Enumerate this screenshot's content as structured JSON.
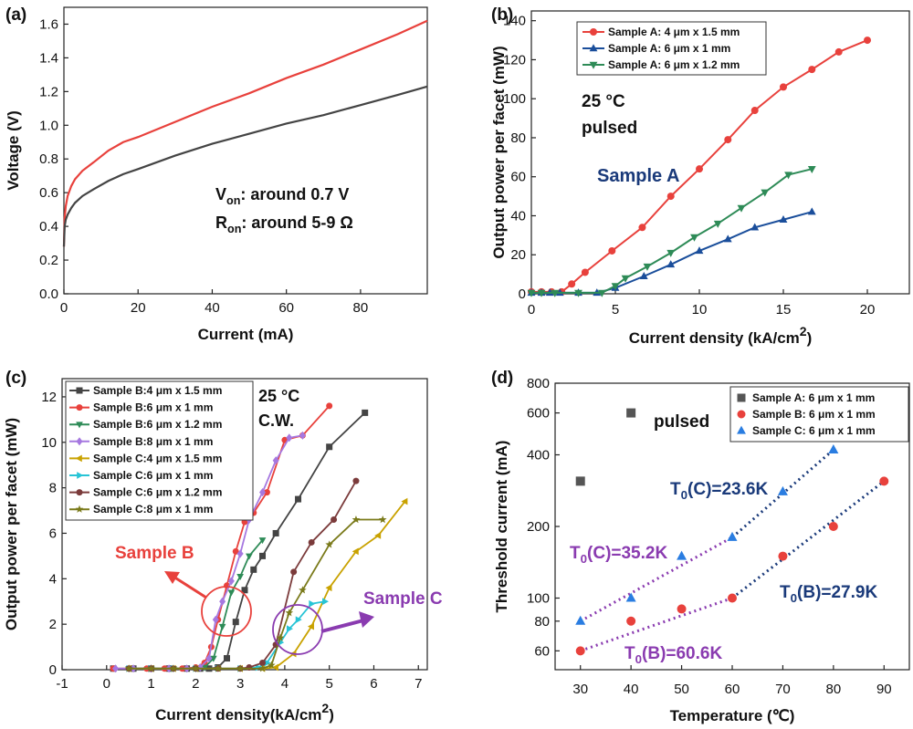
{
  "chart_data": [
    {
      "panel": "(a)",
      "type": "line",
      "xlabel": "Current (mA)",
      "ylabel": "Voltage (V)",
      "xlim": [
        0,
        98
      ],
      "ylim": [
        0,
        1.7
      ],
      "xticks": [
        0,
        20,
        40,
        60,
        80
      ],
      "yticks": [
        0.0,
        0.2,
        0.4,
        0.6,
        0.8,
        1.0,
        1.2,
        1.4,
        1.6
      ],
      "series": [
        {
          "color": "#e8413c",
          "x": [
            0,
            0.2,
            0.5,
            1,
            2,
            3,
            5,
            8,
            12,
            16,
            20,
            30,
            40,
            50,
            60,
            70,
            80,
            90,
            98
          ],
          "y": [
            0.28,
            0.45,
            0.52,
            0.58,
            0.64,
            0.68,
            0.73,
            0.78,
            0.85,
            0.9,
            0.93,
            1.02,
            1.11,
            1.19,
            1.28,
            1.36,
            1.45,
            1.54,
            1.62
          ]
        },
        {
          "color": "#444444",
          "x": [
            0,
            0.2,
            0.5,
            1,
            2,
            3,
            5,
            8,
            12,
            16,
            20,
            30,
            40,
            50,
            60,
            70,
            80,
            90,
            98
          ],
          "y": [
            0.28,
            0.4,
            0.44,
            0.47,
            0.51,
            0.54,
            0.58,
            0.62,
            0.67,
            0.71,
            0.74,
            0.82,
            0.89,
            0.95,
            1.01,
            1.06,
            1.12,
            1.18,
            1.23
          ]
        }
      ],
      "annotations": [
        {
          "text": "V",
          "sub": "on",
          "rest": ": around 0.7 V"
        },
        {
          "text": "R",
          "sub": "on",
          "rest": ": around 5-9 Ω"
        }
      ]
    },
    {
      "panel": "(b)",
      "type": "line",
      "xlabel": "Current density (kA/cm",
      "xlabel_sup": "2",
      "xlabel_end": ")",
      "ylabel": "Output power per facet (mW)",
      "xlim": [
        0,
        22.5
      ],
      "ylim": [
        0,
        145
      ],
      "xticks": [
        0,
        5,
        10,
        15,
        20
      ],
      "yticks": [
        0,
        20,
        40,
        60,
        80,
        100,
        120,
        140
      ],
      "legend_position": "top-left",
      "series": [
        {
          "name": "Sample A: 4 μm x 1.5 mm",
          "color": "#e8413c",
          "marker": "circle",
          "x": [
            0,
            0.6,
            1.2,
            1.8,
            2.4,
            3.2,
            4.8,
            6.6,
            8.3,
            10,
            11.7,
            13.3,
            15,
            16.7,
            18.3,
            20
          ],
          "y": [
            1,
            1,
            1,
            1,
            5,
            11,
            22,
            34,
            50,
            64,
            79,
            94,
            106,
            115,
            124,
            130
          ]
        },
        {
          "name": "Sample A: 6 μm x 1 mm",
          "color": "#1a4e9b",
          "marker": "triangle",
          "x": [
            0,
            0.6,
            1.1,
            1.7,
            2.8,
            3.9,
            5,
            6.7,
            8.3,
            10,
            11.7,
            13.3,
            15,
            16.7
          ],
          "y": [
            0.5,
            0.5,
            0.5,
            0.5,
            0.5,
            0.5,
            3,
            9,
            15,
            22,
            28,
            34,
            38,
            42
          ]
        },
        {
          "name": "Sample A: 6 μm x 1.2 mm",
          "color": "#2e8b57",
          "marker": "triangle-down",
          "x": [
            0,
            0.6,
            1.4,
            2.8,
            4.2,
            5,
            5.6,
            6.9,
            8.3,
            9.7,
            11.1,
            12.5,
            13.9,
            15.3,
            16.7
          ],
          "y": [
            0.5,
            0.5,
            0.5,
            0.5,
            0.5,
            4,
            8,
            14,
            21,
            29,
            36,
            44,
            52,
            61,
            64
          ]
        }
      ],
      "annotations": [
        {
          "text": "25 °C"
        },
        {
          "text": "pulsed"
        },
        {
          "text": "Sample A"
        }
      ]
    },
    {
      "panel": "(c)",
      "type": "line",
      "xlabel": "Current density(kA/cm",
      "xlabel_sup": "2",
      "xlabel_end": ")",
      "ylabel": "Output power per facet (mW)",
      "xlim": [
        -1,
        7.2
      ],
      "ylim": [
        0,
        12.8
      ],
      "xticks": [
        -1,
        0,
        1,
        2,
        3,
        4,
        5,
        6,
        7
      ],
      "yticks": [
        0,
        2,
        4,
        6,
        8,
        10,
        12
      ],
      "legend_position": "top-left",
      "series": [
        {
          "name": "Sample B:4 μm x 1.5 mm",
          "color": "#444444",
          "marker": "square",
          "x": [
            0.15,
            0.6,
            1.0,
            1.4,
            1.8,
            2.1,
            2.3,
            2.5,
            2.7,
            2.9,
            3.1,
            3.3,
            3.5,
            3.8,
            4.3,
            5.0,
            5.8
          ],
          "y": [
            0.05,
            0.05,
            0.05,
            0.05,
            0.05,
            0.05,
            0.05,
            0.1,
            0.5,
            2.1,
            3.5,
            4.4,
            5.0,
            6.0,
            7.5,
            9.8,
            11.3
          ]
        },
        {
          "name": "Sample B:6 μm x 1 mm",
          "color": "#e8413c",
          "marker": "circle",
          "x": [
            0.15,
            0.5,
            0.9,
            1.3,
            1.7,
            2.0,
            2.2,
            2.35,
            2.5,
            2.7,
            2.9,
            3.1,
            3.3,
            3.6,
            4.0,
            4.4,
            5.0
          ],
          "y": [
            0.05,
            0.05,
            0.05,
            0.05,
            0.05,
            0.1,
            0.3,
            1.0,
            2.2,
            3.7,
            5.2,
            6.5,
            6.9,
            7.8,
            10.1,
            10.3,
            11.6
          ]
        },
        {
          "name": "Sample B:6 μm x 1.2 mm",
          "color": "#2e8b57",
          "marker": "triangle-down",
          "x": [
            0.5,
            1.0,
            1.5,
            2.0,
            2.2,
            2.4,
            2.6,
            2.8,
            3.0,
            3.2,
            3.5
          ],
          "y": [
            0.05,
            0.05,
            0.05,
            0.05,
            0.1,
            0.5,
            1.9,
            3.4,
            4.1,
            5.0,
            5.7
          ]
        },
        {
          "name": "Sample B:8 μm x 1 mm",
          "color": "#a678e0",
          "marker": "diamond",
          "x": [
            0.2,
            0.6,
            1.0,
            1.4,
            1.8,
            2.1,
            2.3,
            2.45,
            2.6,
            2.8,
            3.0,
            3.2,
            3.5,
            3.8,
            4.1,
            4.4
          ],
          "y": [
            0.05,
            0.05,
            0.05,
            0.05,
            0.05,
            0.1,
            0.5,
            2.2,
            3.0,
            3.9,
            5.1,
            6.6,
            7.8,
            9.2,
            10.2,
            10.3
          ]
        },
        {
          "name": "Sample C:4 μm x 1.5 mm",
          "color": "#c9a200",
          "marker": "triangle-left",
          "x": [
            0.5,
            1.0,
            1.5,
            2.0,
            2.5,
            3.0,
            3.5,
            3.8,
            4.2,
            4.6,
            5.0,
            5.6,
            6.1,
            6.7
          ],
          "y": [
            0.05,
            0.05,
            0.05,
            0.05,
            0.05,
            0.05,
            0.05,
            0.1,
            0.7,
            1.9,
            3.6,
            5.2,
            5.9,
            7.4
          ]
        },
        {
          "name": "Sample C:6 μm x 1 mm",
          "color": "#27c4d6",
          "marker": "triangle-right",
          "x": [
            0.5,
            1.0,
            1.5,
            2.0,
            2.5,
            3.0,
            3.4,
            3.6,
            3.9,
            4.1,
            4.3,
            4.6,
            4.9
          ],
          "y": [
            0.05,
            0.05,
            0.05,
            0.05,
            0.05,
            0.05,
            0.1,
            0.3,
            1.2,
            1.8,
            2.2,
            2.9,
            3.0
          ]
        },
        {
          "name": "Sample C:6 μm x 1.2 mm",
          "color": "#7b3b3b",
          "marker": "circle",
          "x": [
            0.5,
            1.0,
            1.5,
            2.0,
            2.5,
            3.0,
            3.2,
            3.5,
            3.8,
            4.2,
            4.6,
            5.1,
            5.6
          ],
          "y": [
            0.05,
            0.05,
            0.05,
            0.05,
            0.05,
            0.05,
            0.1,
            0.3,
            1.1,
            4.3,
            5.6,
            6.6,
            8.3
          ]
        },
        {
          "name": "Sample C:8 μm x 1 mm",
          "color": "#7a7a1a",
          "marker": "star",
          "x": [
            0.5,
            1.0,
            1.5,
            2.0,
            2.5,
            3.0,
            3.5,
            3.7,
            3.9,
            4.1,
            4.4,
            5.0,
            5.6,
            6.2
          ],
          "y": [
            0.05,
            0.05,
            0.05,
            0.05,
            0.05,
            0.05,
            0.05,
            0.2,
            1.4,
            2.5,
            3.5,
            5.5,
            6.6,
            6.6
          ]
        }
      ],
      "annotations": [
        {
          "text": "25 °C"
        },
        {
          "text": "C.W."
        },
        {
          "text": "Sample B"
        },
        {
          "text": "Sample C"
        }
      ]
    },
    {
      "panel": "(d)",
      "type": "scatter",
      "xlabel": "Temperature (℃)",
      "ylabel": "Threshold current (mA)",
      "xlim": [
        25,
        95
      ],
      "ylim": [
        50,
        800
      ],
      "yscale": "log",
      "xticks": [
        30,
        40,
        50,
        60,
        70,
        80,
        90
      ],
      "yticks": [
        60,
        80,
        100,
        200,
        400,
        600,
        800
      ],
      "legend_position": "top-right",
      "series": [
        {
          "name": "Sample A: 6 μm x 1 mm",
          "color": "#555555",
          "marker": "square",
          "x": [
            30,
            40
          ],
          "y": [
            310,
            600
          ]
        },
        {
          "name": "Sample B: 6 μm x 1 mm",
          "color": "#e8413c",
          "marker": "circle",
          "x": [
            30,
            40,
            50,
            60,
            70,
            80,
            90
          ],
          "y": [
            60,
            80,
            90,
            100,
            150,
            200,
            310
          ]
        },
        {
          "name": "Sample C: 6 μm x 1 mm",
          "color": "#2a7de1",
          "marker": "triangle",
          "x": [
            30,
            40,
            50,
            60,
            70,
            80
          ],
          "y": [
            80,
            100,
            150,
            180,
            280,
            420
          ]
        }
      ],
      "fits": [
        {
          "color": "#8a3bb0",
          "x": [
            30,
            60
          ],
          "y": [
            60,
            100
          ]
        },
        {
          "color": "#1a3a7a",
          "x": [
            60,
            90
          ],
          "y": [
            100,
            310
          ]
        },
        {
          "color": "#8a3bb0",
          "x": [
            30,
            60
          ],
          "y": [
            80,
            180
          ]
        },
        {
          "color": "#1a3a7a",
          "x": [
            60,
            80
          ],
          "y": [
            180,
            420
          ]
        }
      ],
      "annotations": [
        {
          "text": "pulsed"
        },
        {
          "text": "T",
          "sub": "0",
          "rest": "(C)=23.6K"
        },
        {
          "text": "T",
          "sub": "0",
          "rest": "(C)=35.2K"
        },
        {
          "text": "T",
          "sub": "0",
          "rest": "(B)=27.9K"
        },
        {
          "text": "T",
          "sub": "0",
          "rest": "(B)=60.6K"
        }
      ]
    }
  ]
}
